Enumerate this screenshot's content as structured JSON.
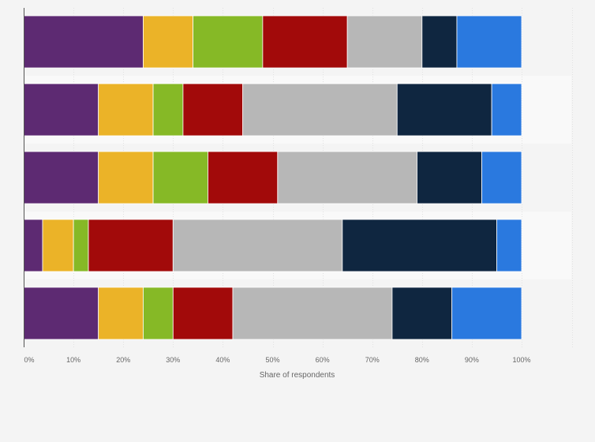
{
  "chart_data": {
    "type": "bar",
    "orientation": "horizontal",
    "stacked": true,
    "xlabel": "Share of respondents",
    "xlim": [
      0,
      100
    ],
    "x_ticks": [
      "0%",
      "10%",
      "20%",
      "30%",
      "40%",
      "50%",
      "60%",
      "70%",
      "80%",
      "90%",
      "100%"
    ],
    "grid": true,
    "categories": [
      "",
      "",
      "",
      "",
      ""
    ],
    "series": [
      {
        "color": "#5d2a72",
        "values": [
          24,
          15,
          15,
          3.8,
          15
        ]
      },
      {
        "color": "#ebb328",
        "values": [
          10,
          11,
          11,
          6.2,
          9
        ]
      },
      {
        "color": "#86b926",
        "values": [
          14,
          6,
          11,
          3,
          6
        ]
      },
      {
        "color": "#a20a0a",
        "values": [
          17,
          12,
          14,
          17,
          12
        ]
      },
      {
        "color": "#b7b7b7",
        "values": [
          15,
          31,
          28,
          34,
          32
        ]
      },
      {
        "color": "#0f2640",
        "values": [
          7,
          19,
          13,
          31,
          12
        ]
      },
      {
        "color": "#2a79df",
        "values": [
          13,
          6,
          8,
          5,
          14
        ]
      }
    ]
  }
}
